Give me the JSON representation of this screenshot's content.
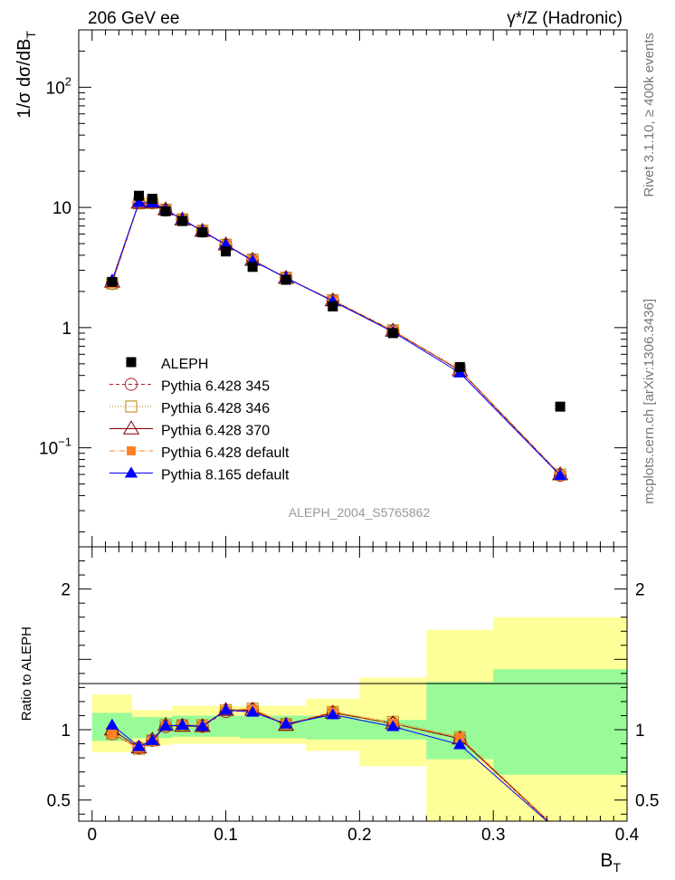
{
  "header": {
    "energy_label": "206 GeV ee",
    "process_label": "γ*/Z (Hadronic)"
  },
  "side_labels": {
    "rivet": "Rivet 3.1.10, ≥ 400k events",
    "mcplots": "mcplots.cern.ch [arXiv:1306.3436]"
  },
  "analysis_label": "ALEPH_2004_S5765862",
  "axes": {
    "ylabel_main": "1/σ dσ/dB",
    "ylabel_main_sub": "T",
    "ylabel_ratio": "Ratio to ALEPH",
    "xlabel": "B",
    "xlabel_sub": "T"
  },
  "colors": {
    "data": "#000000",
    "p345": "#b22222",
    "p346": "#b8860b",
    "p370": "#800000",
    "pdef": "#ff7f24",
    "p8": "#0000ff",
    "band_inner": "#98fb98",
    "band_outer": "#ffff99"
  },
  "chart_data": {
    "type": "line",
    "xlim": [
      -0.01,
      0.4
    ],
    "ylim_main": [
      0.015,
      300
    ],
    "ylim_ratio": [
      0.35,
      2.3
    ],
    "y_scale_main": "log",
    "x_ticks": [
      0,
      0.1,
      0.2,
      0.3,
      0.4
    ],
    "x_tick_labels": [
      "0",
      "0.1",
      "0.2",
      "0.3",
      "0.4"
    ],
    "y_ticks_main": [
      {
        "v": 100,
        "base": "10",
        "exp": "2"
      },
      {
        "v": 10,
        "base": "10",
        "exp": ""
      },
      {
        "v": 1,
        "base": "1",
        "exp": ""
      },
      {
        "v": 0.1,
        "base": "10",
        "exp": "−1"
      }
    ],
    "y_ticks_ratio": [
      {
        "v": 2,
        "label": "2"
      },
      {
        "v": 1,
        "label": "1"
      },
      {
        "v": 0.5,
        "label": "0.5"
      }
    ],
    "bins": [
      {
        "lo": 0.0,
        "hi": 0.03,
        "x": 0.015
      },
      {
        "lo": 0.03,
        "hi": 0.04,
        "x": 0.035
      },
      {
        "lo": 0.04,
        "hi": 0.05,
        "x": 0.045
      },
      {
        "lo": 0.05,
        "hi": 0.06,
        "x": 0.055
      },
      {
        "lo": 0.06,
        "hi": 0.075,
        "x": 0.0675
      },
      {
        "lo": 0.075,
        "hi": 0.09,
        "x": 0.0825
      },
      {
        "lo": 0.09,
        "hi": 0.11,
        "x": 0.1
      },
      {
        "lo": 0.11,
        "hi": 0.13,
        "x": 0.12
      },
      {
        "lo": 0.13,
        "hi": 0.16,
        "x": 0.145
      },
      {
        "lo": 0.16,
        "hi": 0.2,
        "x": 0.18
      },
      {
        "lo": 0.2,
        "hi": 0.25,
        "x": 0.225
      },
      {
        "lo": 0.25,
        "hi": 0.3,
        "x": 0.275
      },
      {
        "lo": 0.3,
        "hi": 0.4,
        "x": 0.35
      }
    ],
    "data": {
      "name": "ALEPH",
      "values": [
        2.4,
        12.5,
        11.8,
        9.3,
        7.7,
        6.2,
        4.3,
        3.2,
        2.5,
        1.5,
        0.9,
        0.47,
        0.22
      ]
    },
    "band_inner": [
      {
        "lo": 0.0,
        "hi": 0.03,
        "min": 0.92,
        "max": 1.12
      },
      {
        "lo": 0.03,
        "hi": 0.06,
        "min": 0.94,
        "max": 1.09
      },
      {
        "lo": 0.06,
        "hi": 0.11,
        "min": 0.95,
        "max": 1.1
      },
      {
        "lo": 0.11,
        "hi": 0.16,
        "min": 0.94,
        "max": 1.1
      },
      {
        "lo": 0.16,
        "hi": 0.2,
        "min": 0.93,
        "max": 1.1
      },
      {
        "lo": 0.2,
        "hi": 0.25,
        "min": 0.93,
        "max": 1.07
      },
      {
        "lo": 0.25,
        "hi": 0.3,
        "min": 0.79,
        "max": 1.34
      },
      {
        "lo": 0.3,
        "hi": 0.4,
        "min": 0.68,
        "max": 1.43
      }
    ],
    "band_outer": [
      {
        "lo": 0.0,
        "hi": 0.03,
        "min": 0.84,
        "max": 1.25
      },
      {
        "lo": 0.03,
        "hi": 0.06,
        "min": 0.89,
        "max": 1.14
      },
      {
        "lo": 0.06,
        "hi": 0.11,
        "min": 0.9,
        "max": 1.17
      },
      {
        "lo": 0.11,
        "hi": 0.16,
        "min": 0.9,
        "max": 1.17
      },
      {
        "lo": 0.16,
        "hi": 0.2,
        "min": 0.85,
        "max": 1.22
      },
      {
        "lo": 0.2,
        "hi": 0.25,
        "min": 0.74,
        "max": 1.37
      },
      {
        "lo": 0.25,
        "hi": 0.3,
        "min": 0.35,
        "max": 1.71
      },
      {
        "lo": 0.3,
        "hi": 0.4,
        "min": 0.35,
        "max": 1.8
      }
    ],
    "series": [
      {
        "key": "p345",
        "name": "Pythia 6.428 345",
        "colorKey": "p345",
        "marker": "circle-open",
        "dash": "4,3",
        "values": [
          2.33,
          10.9,
          10.9,
          9.5,
          7.95,
          6.35,
          4.85,
          3.65,
          2.6,
          1.68,
          0.94,
          0.44,
          0.059
        ]
      },
      {
        "key": "p346",
        "name": "Pythia 6.428 346",
        "colorKey": "p346",
        "marker": "square-open",
        "dash": "1,2",
        "values": [
          2.33,
          10.8,
          10.9,
          9.6,
          7.95,
          6.4,
          4.9,
          3.68,
          2.6,
          1.69,
          0.95,
          0.445,
          0.06
        ]
      },
      {
        "key": "p370",
        "name": "Pythia 6.428 370",
        "colorKey": "p370",
        "marker": "triangle-open",
        "dash": "",
        "values": [
          2.4,
          10.9,
          10.95,
          9.6,
          7.9,
          6.35,
          4.9,
          3.65,
          2.58,
          1.68,
          0.94,
          0.44,
          0.06
        ]
      },
      {
        "key": "pdef",
        "name": "Pythia 6.428 default",
        "colorKey": "pdef",
        "marker": "square-filled",
        "dash": "6,2,1,2",
        "values": [
          2.33,
          10.85,
          10.85,
          9.55,
          7.95,
          6.4,
          4.9,
          3.67,
          2.6,
          1.69,
          0.94,
          0.445,
          0.06
        ]
      },
      {
        "key": "p8",
        "name": "Pythia 8.165 default",
        "colorKey": "p8",
        "marker": "triangle-filled",
        "dash": "",
        "values": [
          2.48,
          11.0,
          10.9,
          9.55,
          7.95,
          6.35,
          4.9,
          3.6,
          2.6,
          1.66,
          0.92,
          0.42,
          0.059
        ]
      }
    ],
    "legend": [
      {
        "label": "ALEPH"
      },
      {
        "label": "Pythia 6.428 345"
      },
      {
        "label": "Pythia 6.428 346"
      },
      {
        "label": "Pythia 6.428 370"
      },
      {
        "label": "Pythia 6.428 default"
      },
      {
        "label": "Pythia 8.165 default"
      }
    ]
  }
}
